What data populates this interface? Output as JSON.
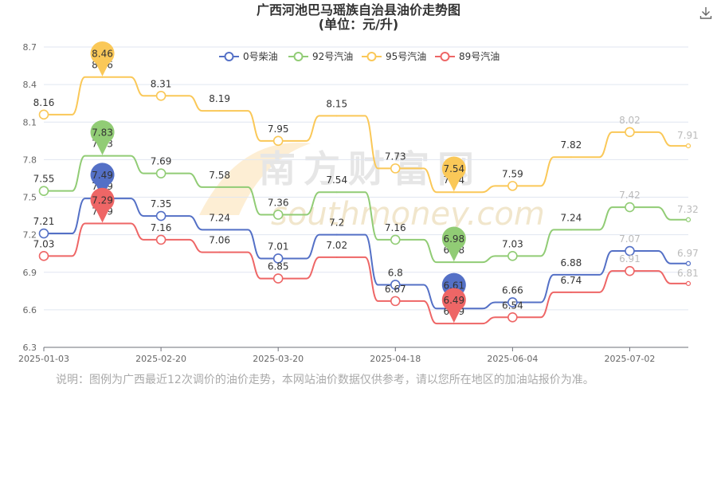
{
  "title": "广西河池巴马瑶族自治县油价走势图",
  "subtitle": "(单位：元/升)",
  "watermark": {
    "line1": "南方财富网",
    "line2": "southmoney.com"
  },
  "note": "说明：图例为广西最近12次调价的油价走势，本网站油价数据仅供参考，请以您所在地区的加油站报价为准。",
  "toolbar": {
    "download_icon": "download-icon"
  },
  "chart_data": {
    "type": "line",
    "ylim": [
      6.3,
      8.7
    ],
    "yticks": [
      "6.3",
      "6.6",
      "6.9",
      "7.2",
      "7.5",
      "7.8",
      "8.1",
      "8.4",
      "8.7"
    ],
    "xticks": [
      "2025-01-03",
      "2025-02-20",
      "2025-03-20",
      "2025-04-18",
      "2025-06-04",
      "2025-07-02"
    ],
    "legend_position": "top-center",
    "series": [
      {
        "name": "0号柴油",
        "color": "#5470c6",
        "values": [
          7.21,
          7.49,
          7.35,
          7.24,
          7.01,
          7.2,
          6.8,
          6.61,
          6.66,
          6.88,
          7.07,
          6.97
        ],
        "max_pin": "7.49",
        "min_pin": "6.61"
      },
      {
        "name": "92号汽油",
        "color": "#91cc75",
        "values": [
          7.55,
          7.83,
          7.69,
          7.58,
          7.36,
          7.54,
          7.16,
          6.98,
          7.03,
          7.24,
          7.42,
          7.32
        ],
        "max_pin": "7.83",
        "min_pin": "6.98"
      },
      {
        "name": "95号汽油",
        "color": "#fac858",
        "values": [
          8.16,
          8.46,
          8.31,
          8.19,
          7.95,
          8.15,
          7.73,
          7.54,
          7.59,
          7.82,
          8.02,
          7.91
        ],
        "max_pin": "8.46",
        "min_pin": "7.54"
      },
      {
        "name": "89号汽油",
        "color": "#ee6666",
        "values": [
          7.03,
          7.29,
          7.16,
          7.06,
          6.85,
          7.02,
          6.67,
          6.49,
          6.54,
          6.74,
          6.91,
          6.81
        ],
        "max_pin": "7.29",
        "min_pin": "6.49"
      }
    ]
  }
}
